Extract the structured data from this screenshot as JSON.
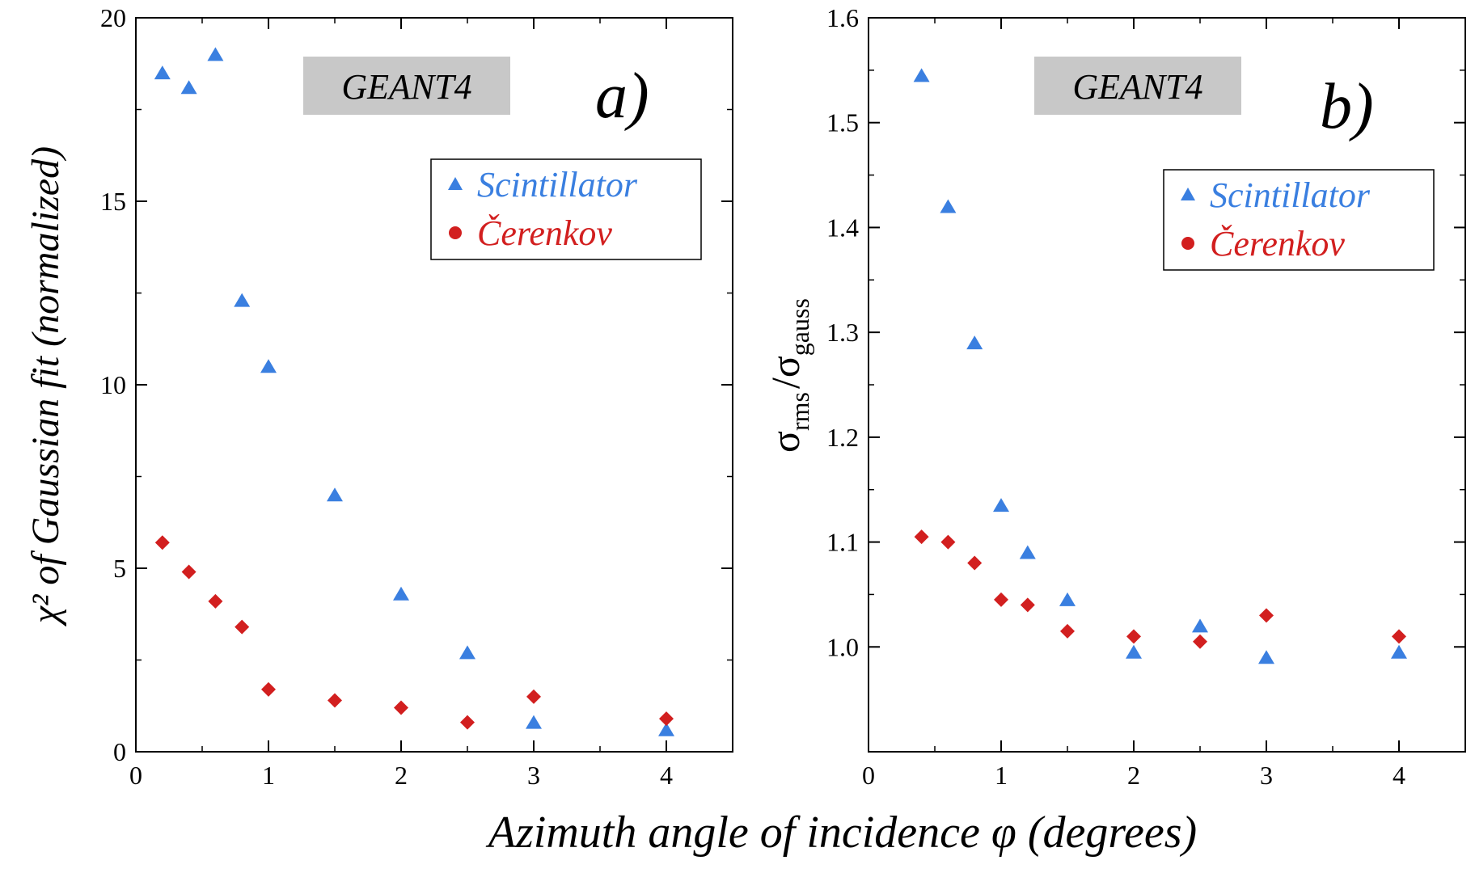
{
  "chart_data": [
    {
      "type": "scatter",
      "panel_label": "a)",
      "badge": "GEANT4",
      "xlabel": "Azimuth angle of incidence φ (degrees)",
      "ylabel": "χ² of Gaussian fit (normalized)",
      "xlim": [
        0,
        4.5
      ],
      "ylim": [
        0,
        20
      ],
      "x_ticks": [
        0,
        1,
        2,
        3,
        4
      ],
      "y_ticks": [
        0,
        5,
        10,
        15,
        20
      ],
      "grid": false,
      "legend_position": "top-right",
      "series": [
        {
          "name": "Scintillator",
          "marker": "triangle",
          "color": "#3a7fe0",
          "x": [
            0.2,
            0.4,
            0.6,
            0.8,
            1.0,
            1.5,
            2.0,
            2.5,
            3.0,
            4.0
          ],
          "y": [
            18.5,
            18.1,
            19.0,
            12.3,
            10.5,
            7.0,
            4.3,
            2.7,
            0.8,
            0.6
          ]
        },
        {
          "name": "Čerenkov",
          "marker": "diamond",
          "color": "#d21f1f",
          "x": [
            0.2,
            0.4,
            0.6,
            0.8,
            1.0,
            1.5,
            2.0,
            2.5,
            3.0,
            4.0
          ],
          "y": [
            5.7,
            4.9,
            4.1,
            3.4,
            1.7,
            1.4,
            1.2,
            0.8,
            1.5,
            0.9
          ]
        }
      ]
    },
    {
      "type": "scatter",
      "panel_label": "b)",
      "badge": "GEANT4",
      "xlabel": "Azimuth angle of incidence φ (degrees)",
      "ylabel": "σrms/σgauss",
      "ylabel_parts": {
        "sym": "σ",
        "sub1": "rms",
        "slash": "/",
        "sub2": "gauss"
      },
      "xlim": [
        0,
        4.5
      ],
      "ylim": [
        0.9,
        1.6
      ],
      "x_ticks": [
        0,
        1,
        2,
        3,
        4
      ],
      "y_ticks": [
        1.0,
        1.1,
        1.2,
        1.3,
        1.4,
        1.5,
        1.6
      ],
      "y_tick_labels": [
        "1.0",
        "1.1",
        "1.2",
        "1.3",
        "1.4",
        "1.5",
        "1.6"
      ],
      "grid": false,
      "legend_position": "top-right",
      "series": [
        {
          "name": "Scintillator",
          "marker": "triangle",
          "color": "#3a7fe0",
          "x": [
            0.4,
            0.6,
            0.8,
            1.0,
            1.2,
            1.5,
            2.0,
            2.5,
            3.0,
            4.0
          ],
          "y": [
            1.545,
            1.42,
            1.29,
            1.135,
            1.09,
            1.045,
            0.995,
            1.02,
            0.99,
            0.995
          ]
        },
        {
          "name": "Čerenkov",
          "marker": "diamond",
          "color": "#d21f1f",
          "x": [
            0.4,
            0.6,
            0.8,
            1.0,
            1.2,
            1.5,
            2.0,
            2.5,
            3.0,
            4.0
          ],
          "y": [
            1.105,
            1.1,
            1.08,
            1.045,
            1.04,
            1.015,
            1.01,
            1.005,
            1.03,
            1.01
          ]
        }
      ]
    }
  ],
  "shared_xlabel": "Azimuth angle of incidence φ (degrees)",
  "colors": {
    "scintillator": "#3a7fe0",
    "cerenkov": "#d21f1f",
    "badge_bg": "#c8c8c8"
  }
}
